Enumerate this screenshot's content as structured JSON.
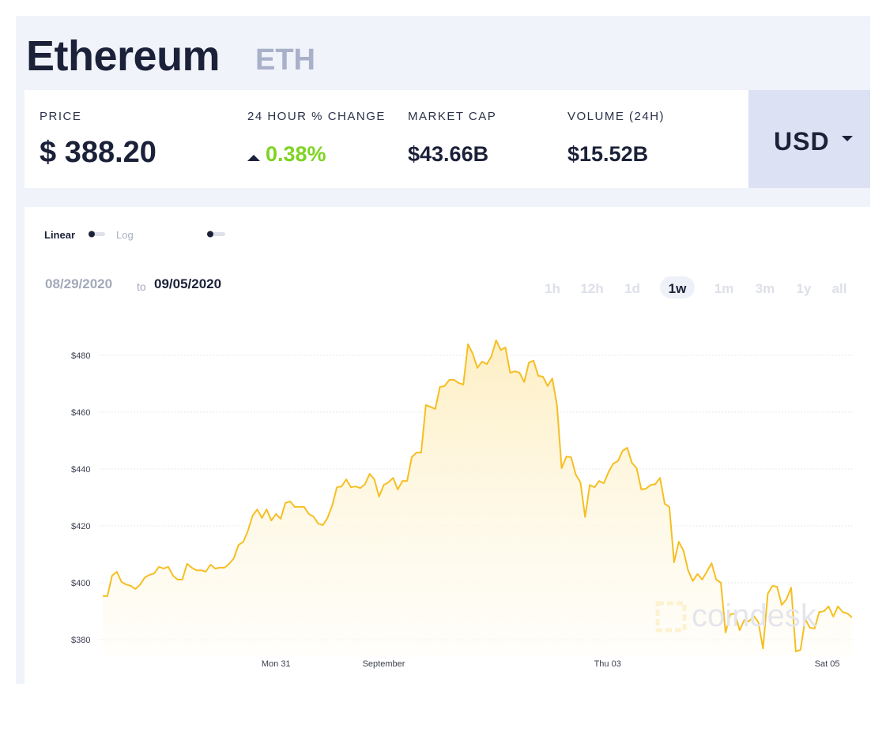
{
  "header": {
    "title": "Ethereum",
    "symbol": "ETH"
  },
  "stats": [
    {
      "label": "PRICE",
      "value": "$ 388.20"
    },
    {
      "label": "24 HOUR % CHANGE",
      "value": "0.38%"
    },
    {
      "label": "MARKET CAP",
      "value": "$43.66B"
    },
    {
      "label": "VOLUME (24H)",
      "value": "$15.52B"
    }
  ],
  "currency": "USD",
  "scale_toggle": {
    "linear": "Linear",
    "log": "Log"
  },
  "date_range": {
    "from": "08/29/2020",
    "to_word": "to",
    "to": "09/05/2020"
  },
  "ranges": [
    "1h",
    "12h",
    "1d",
    "1w",
    "1m",
    "3m",
    "1y",
    "all"
  ],
  "selected_range": "1w",
  "watermark": "coindesk",
  "chart_data": {
    "type": "area",
    "color": "#f5bf23",
    "values": [
      395.3,
      395.3,
      402.5,
      403.9,
      400.3,
      399.4,
      398.9,
      397.8,
      399.4,
      401.9,
      402.8,
      403.3,
      405.6,
      405.0,
      405.6,
      402.5,
      401.1,
      401.1,
      406.7,
      405.3,
      404.4,
      404.4,
      403.9,
      406.4,
      405.0,
      405.3,
      405.3,
      406.7,
      408.6,
      413.3,
      414.4,
      418.3,
      423.6,
      425.8,
      422.8,
      425.8,
      421.9,
      424.2,
      422.5,
      428.1,
      428.6,
      426.7,
      426.7,
      426.7,
      424.2,
      423.3,
      420.8,
      420.3,
      422.8,
      427.2,
      433.6,
      433.9,
      436.4,
      433.6,
      433.9,
      433.3,
      434.7,
      438.3,
      436.4,
      430.3,
      434.4,
      435.3,
      436.9,
      432.8,
      435.8,
      435.8,
      444.2,
      445.8,
      445.8,
      462.5,
      461.9,
      461.1,
      468.9,
      469.2,
      471.4,
      471.4,
      470.3,
      469.7,
      483.9,
      480.6,
      475.6,
      477.8,
      476.9,
      479.7,
      485.3,
      481.9,
      482.8,
      473.9,
      474.4,
      473.9,
      470.6,
      477.5,
      478.1,
      472.8,
      472.5,
      469.2,
      471.9,
      462.5,
      440.3,
      444.4,
      444.2,
      438.1,
      435.3,
      423.1,
      434.4,
      433.6,
      435.8,
      435.0,
      438.9,
      441.9,
      442.8,
      446.4,
      447.5,
      442.2,
      440.3,
      432.8,
      433.1,
      434.4,
      434.7,
      436.9,
      427.8,
      426.7,
      407.2,
      414.4,
      411.4,
      404.4,
      400.6,
      403.1,
      401.1,
      403.9,
      406.9,
      401.1,
      400.0,
      382.5,
      388.9,
      389.2,
      383.3,
      386.9,
      386.4,
      388.3,
      386.1,
      376.9,
      396.1,
      398.9,
      398.6,
      392.2,
      394.2,
      398.3,
      375.8,
      376.4,
      387.2,
      384.2,
      383.9,
      389.7,
      390.0,
      391.7,
      388.1,
      391.7,
      389.7,
      389.2,
      387.8
    ],
    "ylim": [
      374,
      488
    ],
    "yticks": [
      {
        "value": 380,
        "label": "$380"
      },
      {
        "value": 400,
        "label": "$400"
      },
      {
        "value": 420,
        "label": "$420"
      },
      {
        "value": 440,
        "label": "$440"
      },
      {
        "value": 460,
        "label": "$460"
      },
      {
        "value": 480,
        "label": "$480"
      }
    ],
    "xticks": [
      {
        "value": 37,
        "label": "Mon 31"
      },
      {
        "value": 60,
        "label": "September"
      },
      {
        "value": 107.8,
        "label": "Thu 03"
      },
      {
        "value": 154.7,
        "label": "Sat 05"
      }
    ],
    "grid": true
  }
}
